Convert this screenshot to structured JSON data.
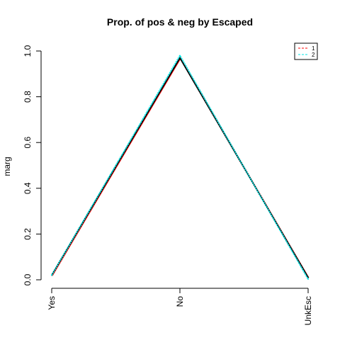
{
  "chart_data": {
    "type": "line",
    "title": "Prop. of pos & neg by Escaped",
    "xlabel": "",
    "ylabel": "marg",
    "categories": [
      "Yes",
      "No",
      "UnkEsc"
    ],
    "ylim": [
      0,
      1
    ],
    "yticks": [
      "0.0",
      "0.2",
      "0.4",
      "0.6",
      "0.8",
      "1.0"
    ],
    "legend_position": "top-right",
    "series": [
      {
        "name": "1",
        "color": "#000000",
        "values": [
          0.02,
          0.97,
          0.01
        ]
      },
      {
        "name": "2",
        "color": "#00e5e5",
        "values": [
          0.02,
          0.98,
          0.003
        ]
      }
    ],
    "legend_dash_colors": [
      "#ff0000",
      "#00e5e5"
    ]
  }
}
